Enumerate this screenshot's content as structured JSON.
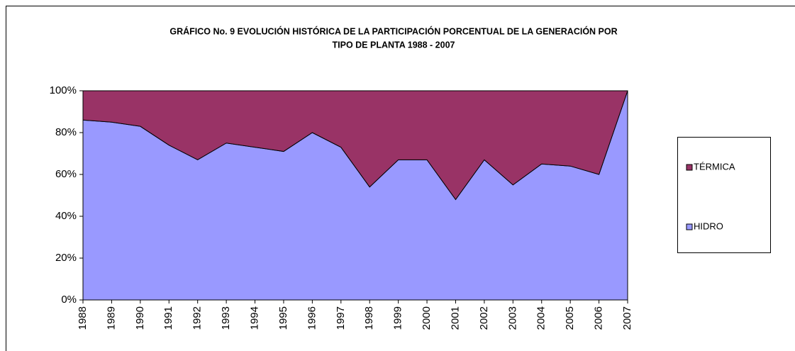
{
  "chart_data": {
    "type": "stacked_area",
    "title": [
      "GRÁFICO No. 9   EVOLUCIÓN HISTÓRICA DE LA PARTICIPACIÓN PORCENTUAL DE LA GENERACIÓN POR",
      "TIPO DE PLANTA   1988 - 2007"
    ],
    "categories": [
      "1988",
      "1989",
      "1990",
      "1991",
      "1992",
      "1993",
      "1994",
      "1995",
      "1996",
      "1997",
      "1998",
      "1999",
      "2000",
      "2001",
      "2002",
      "2003",
      "2004",
      "2005",
      "2006",
      "2007"
    ],
    "series": [
      {
        "name": "HIDRO",
        "color": "#9999ff",
        "values": [
          86,
          85,
          83,
          74,
          67,
          75,
          73,
          71,
          80,
          73,
          54,
          67,
          67,
          48,
          67,
          55,
          65,
          64,
          60,
          100
        ]
      },
      {
        "name": "TÉRMICA",
        "color": "#993366",
        "values": [
          14,
          15,
          17,
          26,
          33,
          25,
          27,
          29,
          20,
          27,
          46,
          33,
          33,
          52,
          33,
          45,
          35,
          36,
          40,
          0
        ]
      }
    ],
    "ylim": [
      0,
      100
    ],
    "yticks": [
      {
        "value": 0,
        "label": "0%"
      },
      {
        "value": 20,
        "label": "20%"
      },
      {
        "value": 40,
        "label": "40%"
      },
      {
        "value": 60,
        "label": "60%"
      },
      {
        "value": 80,
        "label": "80%"
      },
      {
        "value": 100,
        "label": "100%"
      }
    ],
    "legend": "right"
  }
}
